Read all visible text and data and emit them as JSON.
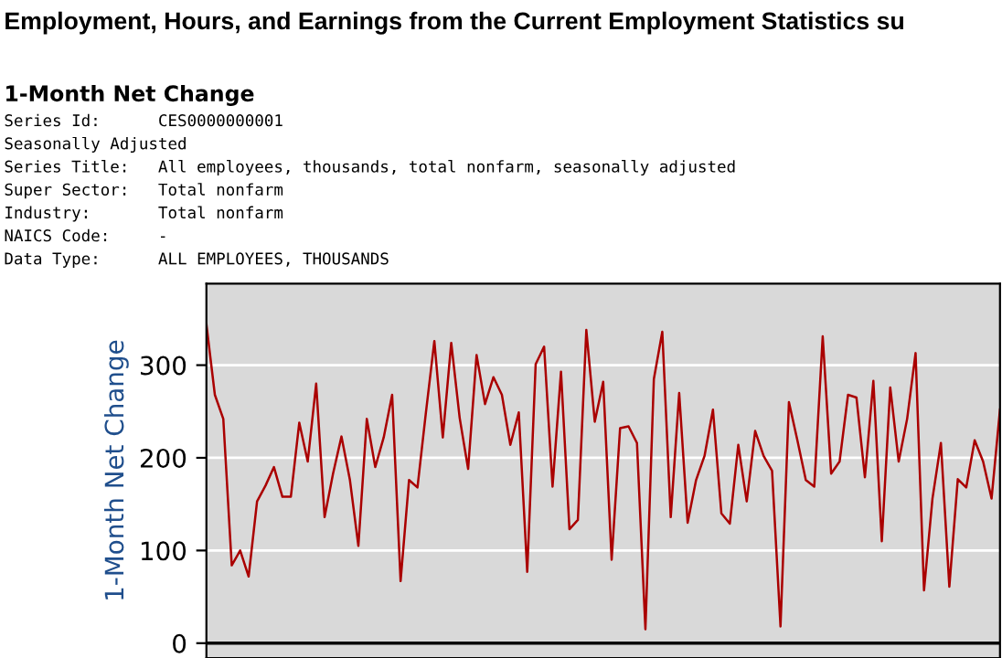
{
  "chart_data": {
    "type": "line",
    "title": "Employment, Hours, and Earnings from the Current Employment Statistics su",
    "subtitle": "1-Month Net Change",
    "annotations": [
      "Series Id:      CES0000000001",
      "Seasonally Adjusted",
      "Series Title:   All employees, thousands, total nonfarm, seasonally adjusted",
      "Super Sector:   Total nonfarm",
      "Industry:       Total nonfarm",
      "NAICS Code:     -",
      "Data Type:      ALL EMPLOYEES, THOUSANDS"
    ],
    "ylabel": "1-Month Net Change",
    "categories": [
      null,
      null,
      null,
      null,
      null,
      null,
      null,
      null,
      null,
      null,
      null,
      null,
      null,
      null,
      null,
      null,
      null,
      null,
      null,
      null,
      null,
      null,
      null,
      null,
      null,
      null,
      null,
      null,
      null,
      null,
      null,
      null,
      null,
      null,
      null,
      null,
      null,
      null,
      null,
      null,
      null,
      null,
      null,
      null,
      null,
      null,
      null,
      null,
      null,
      null,
      null,
      null,
      null,
      null,
      null,
      null,
      null,
      null,
      null,
      null,
      null,
      null,
      null,
      null,
      null,
      null,
      null,
      null,
      null,
      null,
      null,
      null,
      null,
      null,
      null,
      null,
      null,
      null,
      null,
      null,
      null,
      null,
      null,
      null,
      null,
      null,
      null,
      null,
      null,
      null,
      null,
      null,
      null,
      null,
      null
    ],
    "series": [
      {
        "color": "#aa0000",
        "values": [
          344,
          268,
          242,
          84,
          100,
          72,
          153,
          170,
          190,
          158,
          158,
          238,
          196,
          280,
          136,
          183,
          223,
          176,
          105,
          242,
          190,
          222,
          268,
          67,
          176,
          168,
          249,
          326,
          222,
          324,
          243,
          188,
          311,
          258,
          287,
          268,
          214,
          249,
          77,
          301,
          320,
          169,
          293,
          123,
          133,
          338,
          239,
          282,
          90,
          232,
          234,
          216,
          15,
          285,
          336,
          136,
          270,
          130,
          176,
          202,
          252,
          140,
          129,
          214,
          153,
          229,
          202,
          186,
          18,
          260,
          219,
          176,
          169,
          331,
          183,
          196,
          268,
          265,
          179,
          283,
          110,
          276,
          196,
          242,
          313,
          57,
          156,
          216,
          61,
          177,
          168,
          219,
          196,
          156,
          252
        ]
      }
    ],
    "ylim": [
      -16,
      388
    ],
    "yticks": [
      0,
      100,
      200,
      300
    ],
    "grid": "y",
    "tick_labels": "y",
    "marker": "none",
    "line_style": "solid",
    "legend": false
  }
}
